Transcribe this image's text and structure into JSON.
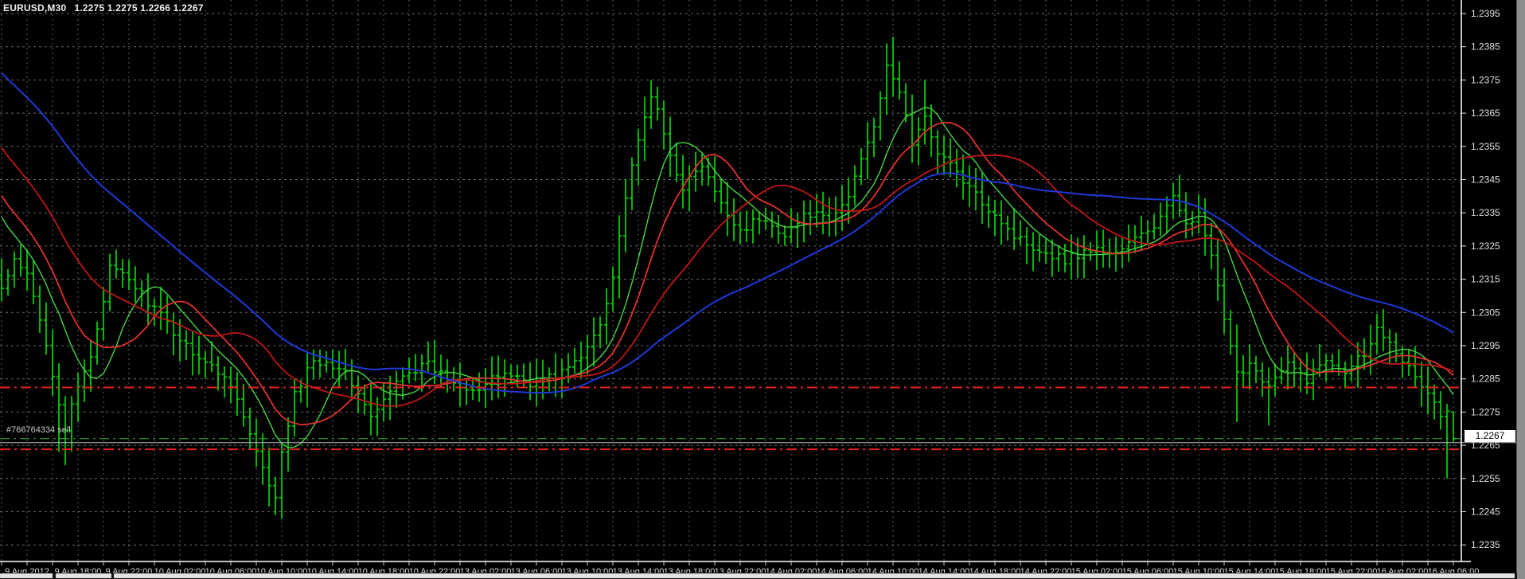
{
  "header": {
    "symbol_period": "EURUSD,M30",
    "quote_summary": "1.2275 1.2275 1.2266 1.2267"
  },
  "order": {
    "label": "#766764334 sell",
    "price": 1.2267,
    "line_color": "#3db23d"
  },
  "bid_line": {
    "price": 1.22658,
    "color": "#c0c0cc"
  },
  "level_lines": [
    {
      "price": 1.22824,
      "color": "#e02020"
    },
    {
      "price": 1.22638,
      "color": "#e02020"
    }
  ],
  "price_axis": {
    "current": "1.2267",
    "ticks": [
      "1.2395",
      "1.2385",
      "1.2375",
      "1.2365",
      "1.2355",
      "1.2345",
      "1.2335",
      "1.2325",
      "1.2315",
      "1.2305",
      "1.2295",
      "1.2285",
      "1.2275",
      "1.2265",
      "1.2255",
      "1.2245",
      "1.2235"
    ],
    "text_color": "#e0e0e0"
  },
  "time_axis": {
    "labels": [
      "9 Aug 2012",
      "9 Aug 18:00",
      "9 Aug 22:00",
      "10 Aug 02:00",
      "10 Aug 06:00",
      "10 Aug 10:00",
      "10 Aug 14:00",
      "10 Aug 18:00",
      "10 Aug 22:00",
      "13 Aug 02:00",
      "13 Aug 06:00",
      "13 Aug 10:00",
      "13 Aug 14:00",
      "13 Aug 18:00",
      "13 Aug 22:00",
      "14 Aug 02:00",
      "14 Aug 06:00",
      "14 Aug 10:00",
      "14 Aug 14:00",
      "14 Aug 18:00",
      "14 Aug 22:00",
      "15 Aug 02:00",
      "15 Aug 06:00",
      "15 Aug 10:00",
      "15 Aug 14:00",
      "15 Aug 18:00",
      "15 Aug 22:00",
      "16 Aug 02:00",
      "16 Aug 06:00"
    ],
    "text_color": "#dcdcdc"
  },
  "grid": {
    "color": "#7c7c7c"
  },
  "chart_data": {
    "type": "ohlc-bar",
    "symbol": "EURUSD",
    "timeframe": "M30",
    "bar_color": "#00cc00",
    "bars_count": 229,
    "y_range": {
      "top_price": 1.2395,
      "bottom_price": 1.2235,
      "tick_step": 0.001
    },
    "price_anchors": [
      [
        0,
        1.2312
      ],
      [
        2,
        1.232
      ],
      [
        4,
        1.2316
      ],
      [
        7,
        1.2296
      ],
      [
        9,
        1.2278
      ],
      [
        10,
        1.227
      ],
      [
        12,
        1.2282
      ],
      [
        14,
        1.2292
      ],
      [
        17,
        1.2318
      ],
      [
        20,
        1.2315
      ],
      [
        24,
        1.2306
      ],
      [
        28,
        1.2297
      ],
      [
        32,
        1.229
      ],
      [
        36,
        1.2284
      ],
      [
        39,
        1.2268
      ],
      [
        42,
        1.2252
      ],
      [
        43,
        1.225
      ],
      [
        44,
        1.2262
      ],
      [
        46,
        1.228
      ],
      [
        49,
        1.2291
      ],
      [
        53,
        1.2289
      ],
      [
        56,
        1.2281
      ],
      [
        58,
        1.2273
      ],
      [
        60,
        1.2278
      ],
      [
        63,
        1.2287
      ],
      [
        67,
        1.2289
      ],
      [
        71,
        1.2284
      ],
      [
        75,
        1.2282
      ],
      [
        79,
        1.2287
      ],
      [
        83,
        1.2284
      ],
      [
        87,
        1.2286
      ],
      [
        91,
        1.2291
      ],
      [
        94,
        1.2302
      ],
      [
        96,
        1.2316
      ],
      [
        98,
        1.234
      ],
      [
        100,
        1.2356
      ],
      [
        102,
        1.2371
      ],
      [
        103,
        1.2365
      ],
      [
        105,
        1.2352
      ],
      [
        107,
        1.2343
      ],
      [
        110,
        1.2349
      ],
      [
        113,
        1.2337
      ],
      [
        116,
        1.233
      ],
      [
        119,
        1.2333
      ],
      [
        123,
        1.2329
      ],
      [
        127,
        1.2335
      ],
      [
        130,
        1.2332
      ],
      [
        133,
        1.234
      ],
      [
        135,
        1.2352
      ],
      [
        137,
        1.2362
      ],
      [
        139,
        1.2378
      ],
      [
        141,
        1.2372
      ],
      [
        143,
        1.2356
      ],
      [
        145,
        1.2363
      ],
      [
        147,
        1.2354
      ],
      [
        150,
        1.2347
      ],
      [
        153,
        1.234
      ],
      [
        156,
        1.2335
      ],
      [
        159,
        1.2328
      ],
      [
        163,
        1.2324
      ],
      [
        167,
        1.2321
      ],
      [
        171,
        1.2324
      ],
      [
        175,
        1.2323
      ],
      [
        178,
        1.2327
      ],
      [
        181,
        1.2331
      ],
      [
        184,
        1.2339
      ],
      [
        186,
        1.2333
      ],
      [
        188,
        1.2334
      ],
      [
        190,
        1.2322
      ],
      [
        192,
        1.2302
      ],
      [
        194,
        1.2286
      ],
      [
        196,
        1.229
      ],
      [
        199,
        1.2283
      ],
      [
        202,
        1.2289
      ],
      [
        205,
        1.2285
      ],
      [
        208,
        1.2291
      ],
      [
        211,
        1.2288
      ],
      [
        214,
        1.2293
      ],
      [
        216,
        1.23
      ],
      [
        218,
        1.2297
      ],
      [
        220,
        1.2291
      ],
      [
        222,
        1.2285
      ],
      [
        224,
        1.2281
      ],
      [
        226,
        1.2274
      ],
      [
        227,
        1.2275
      ],
      [
        228,
        1.2267
      ]
    ],
    "wick_low_overrides": [
      [
        9,
        1.2263
      ],
      [
        10,
        1.2259
      ],
      [
        43,
        1.2244
      ],
      [
        58,
        1.2268
      ],
      [
        194,
        1.2272
      ],
      [
        199,
        1.2271
      ],
      [
        227,
        1.2255
      ]
    ],
    "wick_high_overrides": [
      [
        102,
        1.2375
      ],
      [
        139,
        1.2386
      ],
      [
        140,
        1.2388
      ],
      [
        145,
        1.2375
      ],
      [
        184,
        1.2344
      ],
      [
        217,
        1.2306
      ]
    ],
    "last_bar": {
      "o": 1.2275,
      "h": 1.2275,
      "l": 1.2266,
      "c": 1.2267
    },
    "prehistory": {
      "bars": 60,
      "start": 1.242,
      "mid": 1.2396,
      "end": 1.2326
    },
    "moving_averages": [
      {
        "name": "ma-fast-green",
        "period": 9,
        "color": "#46d546",
        "width": 1.4
      },
      {
        "name": "ma-mid-red",
        "period": 14,
        "color": "#e23030",
        "width": 1.8
      },
      {
        "name": "ma-slow-red",
        "period": 26,
        "color": "#c01616",
        "width": 1.8
      },
      {
        "name": "ma-trend-blue",
        "period": 50,
        "color": "#2038d8",
        "width": 2.0
      }
    ]
  }
}
